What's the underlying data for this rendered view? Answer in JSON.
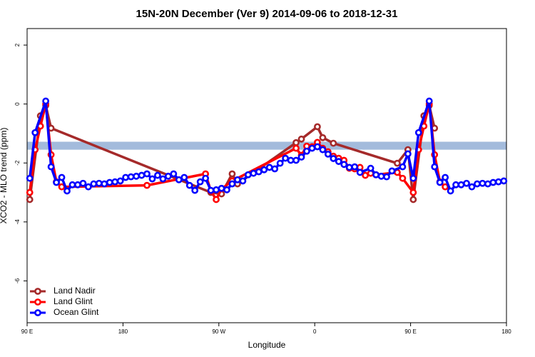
{
  "chart_data": {
    "type": "line",
    "title": "15N-20N December (Ver 9)   2014-09-06 to 2018-12-31",
    "xlabel": "Longitude",
    "ylabel": "XCO2 - MLO trend (ppm)",
    "xlim": [
      90,
      540
    ],
    "xticks": [
      {
        "value": 90,
        "label": "90 E"
      },
      180,
      {
        "value": 270,
        "label": "90 W"
      },
      {
        "value": 360,
        "label": "0"
      },
      {
        "value": 450,
        "label": "90 E"
      },
      {
        "value": 540,
        "label": "180"
      }
    ],
    "ylim": [
      -7.42,
      2.56
    ],
    "yticks": [
      2,
      0,
      -2,
      -4,
      -6
    ],
    "band_ylim": [
      -1.55,
      -1.28
    ],
    "band_color": "#a3bbdc",
    "legend": "bottom-left",
    "series": [
      {
        "name": "Land Nadir",
        "color": "#a52a2a",
        "x": [
          92.5,
          102.5,
          107.5,
          112.5,
          262.5,
          272.5,
          282.5,
          287.5,
          342.5,
          347.5,
          362.5,
          367.5,
          377.5,
          437.5,
          447.5,
          452.5,
          462.5,
          467.5,
          472.5
        ],
        "values": [
          -3.24,
          -0.4,
          -0.05,
          -0.82,
          -3.0,
          -3.05,
          -2.37,
          -2.71,
          -1.31,
          -1.19,
          -0.77,
          -1.14,
          -1.33,
          -2.01,
          -1.55,
          -3.24,
          -0.4,
          -0.05,
          -0.82
        ]
      },
      {
        "name": "Land Glint",
        "color": "#ff0000",
        "x": [
          92.5,
          97.5,
          102.5,
          107.5,
          112.5,
          117.5,
          122.5,
          202.5,
          257.5,
          262.5,
          267.5,
          272.5,
          282.5,
          342.5,
          347.5,
          352.5,
          357.5,
          362.5,
          367.5,
          372.5,
          377.5,
          382.5,
          387.5,
          392.5,
          397.5,
          402.5,
          407.5,
          412.5,
          417.5,
          437.5,
          442.5,
          452.5,
          457.5,
          462.5,
          467.5,
          472.5,
          477.5,
          482.5
        ],
        "values": [
          -3.0,
          -1.55,
          -0.75,
          0.0,
          -1.72,
          -2.64,
          -2.81,
          -2.76,
          -2.37,
          -2.95,
          -3.24,
          -2.88,
          -2.61,
          -1.5,
          -1.74,
          -1.43,
          -1.45,
          -1.3,
          -1.5,
          -1.62,
          -1.77,
          -1.84,
          -1.91,
          -2.18,
          -2.2,
          -2.15,
          -2.42,
          -2.35,
          -2.4,
          -2.32,
          -2.52,
          -3.0,
          -1.55,
          -0.75,
          0.0,
          -1.72,
          -2.64,
          -2.81
        ]
      },
      {
        "name": "Ocean Glint",
        "color": "#0000ff",
        "x": [
          92.5,
          97.5,
          107.5,
          112.5,
          117.5,
          122.5,
          127.5,
          132.5,
          137.5,
          142.5,
          147.5,
          152.5,
          157.5,
          162.5,
          167.5,
          172.5,
          177.5,
          182.5,
          187.5,
          192.5,
          197.5,
          202.5,
          207.5,
          212.5,
          217.5,
          222.5,
          227.5,
          232.5,
          237.5,
          242.5,
          247.5,
          252.5,
          257.5,
          262.5,
          267.5,
          272.5,
          277.5,
          282.5,
          287.5,
          292.5,
          297.5,
          302.5,
          307.5,
          312.5,
          317.5,
          322.5,
          327.5,
          332.5,
          337.5,
          342.5,
          347.5,
          352.5,
          357.5,
          362.5,
          367.5,
          372.5,
          377.5,
          382.5,
          387.5,
          392.5,
          397.5,
          402.5,
          412.5,
          417.5,
          422.5,
          427.5,
          432.5,
          442.5,
          447.5,
          452.5,
          457.5,
          467.5,
          472.5,
          477.5,
          482.5,
          487.5,
          492.5,
          497.5,
          502.5,
          507.5,
          512.5,
          517.5,
          522.5,
          527.5,
          532.5,
          537.5
        ],
        "values": [
          -2.52,
          -0.97,
          0.1,
          -2.13,
          -2.66,
          -2.49,
          -2.95,
          -2.74,
          -2.74,
          -2.69,
          -2.81,
          -2.71,
          -2.69,
          -2.71,
          -2.66,
          -2.64,
          -2.61,
          -2.49,
          -2.47,
          -2.45,
          -2.42,
          -2.37,
          -2.54,
          -2.42,
          -2.54,
          -2.45,
          -2.37,
          -2.57,
          -2.49,
          -2.76,
          -2.93,
          -2.64,
          -2.52,
          -2.93,
          -2.91,
          -2.86,
          -2.91,
          -2.71,
          -2.57,
          -2.61,
          -2.4,
          -2.35,
          -2.3,
          -2.23,
          -2.15,
          -2.2,
          -2.01,
          -1.84,
          -1.91,
          -1.91,
          -1.8,
          -1.6,
          -1.5,
          -1.45,
          -1.55,
          -1.7,
          -1.85,
          -1.95,
          -2.05,
          -2.15,
          -2.13,
          -2.32,
          -2.18,
          -2.4,
          -2.45,
          -2.47,
          -2.27,
          -2.13,
          -1.69,
          -2.52,
          -0.97,
          0.1,
          -2.13,
          -2.66,
          -2.49,
          -2.95,
          -2.74,
          -2.74,
          -2.69,
          -2.81,
          -2.71,
          -2.69,
          -2.71,
          -2.66,
          -2.64,
          -2.61
        ]
      }
    ]
  }
}
